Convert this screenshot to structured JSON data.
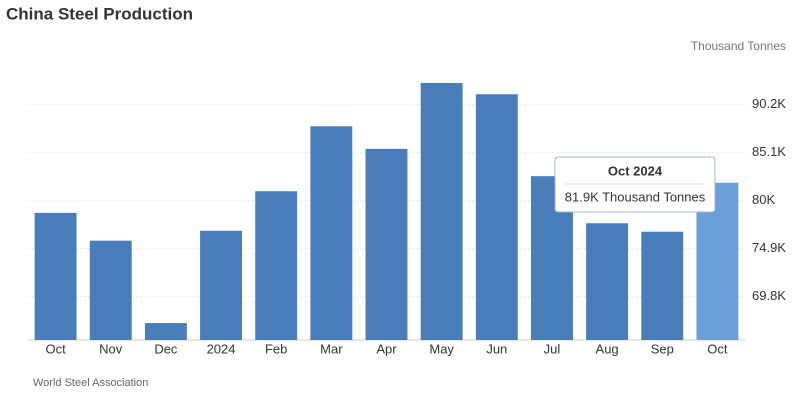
{
  "chart_data": {
    "type": "bar",
    "title": "China Steel Production",
    "unit_label": "Thousand Tonnes",
    "source": "World Steel Association",
    "categories": [
      "Oct",
      "Nov",
      "Dec",
      "2024",
      "Feb",
      "Mar",
      "Apr",
      "May",
      "Jun",
      "Jul",
      "Aug",
      "Sep",
      "Oct"
    ],
    "values": [
      78700,
      75750,
      67000,
      76800,
      81000,
      87900,
      85500,
      92500,
      91300,
      82600,
      77600,
      76700,
      81900
    ],
    "colors": [
      "#4a7ebb",
      "#4a7ebb",
      "#4a7ebb",
      "#4a7ebb",
      "#4a7ebb",
      "#4a7ebb",
      "#4a7ebb",
      "#4a7ebb",
      "#4a7ebb",
      "#4a7ebb",
      "#4a7ebb",
      "#4a7ebb",
      "#6a9fd8"
    ],
    "ylim": [
      65200,
      94300
    ],
    "yticks": [
      {
        "value": 69800,
        "label": "69.8K"
      },
      {
        "value": 74900,
        "label": "74.9K"
      },
      {
        "value": 80000,
        "label": "80K"
      },
      {
        "value": 85100,
        "label": "85.1K"
      },
      {
        "value": 90200,
        "label": "90.2K"
      }
    ],
    "grid": true,
    "tooltip": {
      "title": "Oct 2024",
      "text": "81.9K Thousand Tonnes"
    }
  }
}
